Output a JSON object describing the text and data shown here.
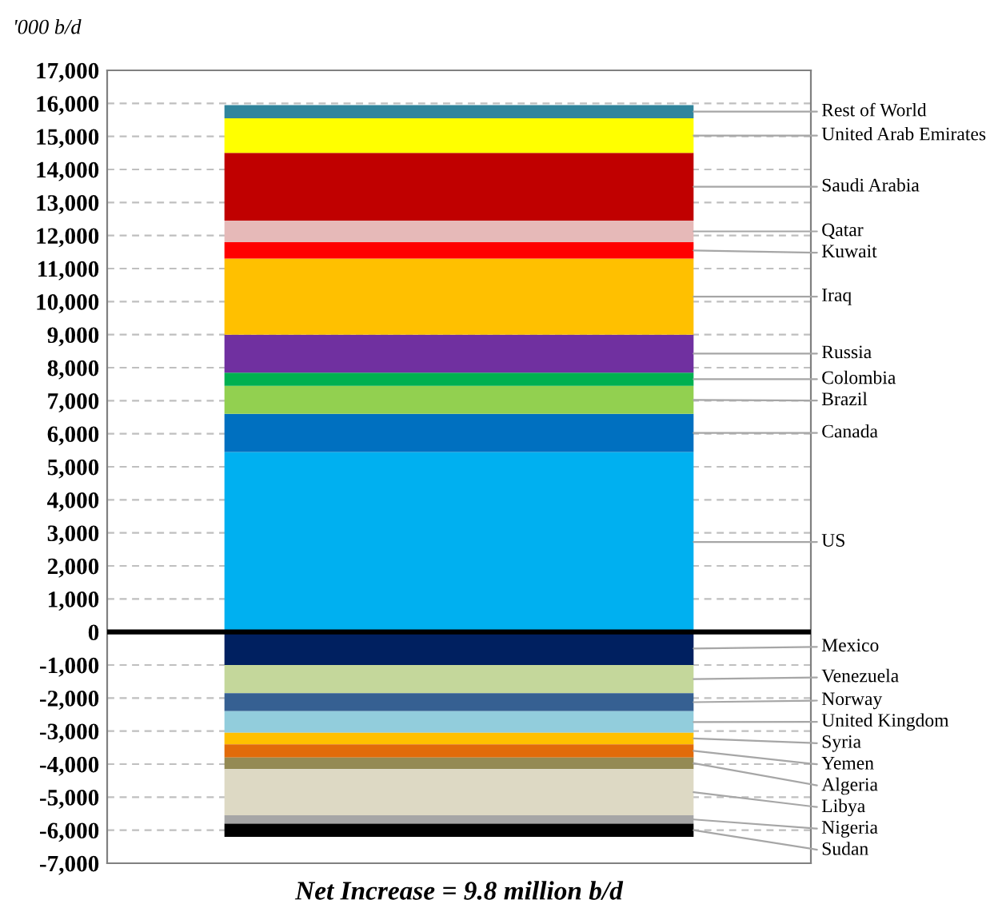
{
  "chart_data": {
    "type": "bar",
    "stacked": true,
    "categories": [
      null
    ],
    "ylabel": "'000 b/d",
    "xlabel": "Net Increase = 9.8 million b/d",
    "ylim": [
      -7000,
      17000
    ],
    "yticks": [
      {
        "value": -7000,
        "label": "-7,000"
      },
      {
        "value": -6000,
        "label": "-6,000"
      },
      {
        "value": -5000,
        "label": "-5,000"
      },
      {
        "value": -4000,
        "label": "-4,000"
      },
      {
        "value": -3000,
        "label": "-3,000"
      },
      {
        "value": -2000,
        "label": "-2,000"
      },
      {
        "value": -1000,
        "label": "-1,000"
      },
      0,
      {
        "value": 1000,
        "label": "1,000"
      },
      {
        "value": 2000,
        "label": "2,000"
      },
      {
        "value": 3000,
        "label": "3,000"
      },
      {
        "value": 4000,
        "label": "4,000"
      },
      {
        "value": 5000,
        "label": "5,000"
      },
      {
        "value": 6000,
        "label": "6,000"
      },
      {
        "value": 7000,
        "label": "7,000"
      },
      {
        "value": 8000,
        "label": "8,000"
      },
      {
        "value": 9000,
        "label": "9,000"
      },
      {
        "value": 10000,
        "label": "10,000"
      },
      {
        "value": 11000,
        "label": "11,000"
      },
      {
        "value": 12000,
        "label": "12,000"
      },
      {
        "value": 13000,
        "label": "13,000"
      },
      {
        "value": 14000,
        "label": "14,000"
      },
      {
        "value": 15000,
        "label": "15,000"
      },
      {
        "value": 16000,
        "label": "16,000"
      },
      {
        "value": 17000,
        "label": "17,000"
      }
    ],
    "grid": "y",
    "legend": false,
    "tick_labels": "y",
    "ref_lines": [
      {
        "axis": "y",
        "value": 0,
        "color": "#000000",
        "line_style": "solid"
      }
    ],
    "series": [
      {
        "name": "US",
        "color": "#00b0f0",
        "values": [
          5450
        ]
      },
      {
        "name": "Canada",
        "color": "#0070c0",
        "values": [
          1150
        ]
      },
      {
        "name": "Brazil",
        "color": "#92d050",
        "values": [
          850
        ]
      },
      {
        "name": "Colombia",
        "color": "#00b050",
        "values": [
          400
        ]
      },
      {
        "name": "Russia",
        "color": "#7030a0",
        "values": [
          1150
        ]
      },
      {
        "name": "Iraq",
        "color": "#ffc000",
        "values": [
          2300
        ]
      },
      {
        "name": "Kuwait",
        "color": "#ff0000",
        "values": [
          500
        ]
      },
      {
        "name": "Qatar",
        "color": "#e6b9b8",
        "values": [
          650
        ]
      },
      {
        "name": "Saudi Arabia",
        "color": "#c00000",
        "values": [
          2050
        ]
      },
      {
        "name": "United Arab Emirates",
        "color": "#ffff00",
        "values": [
          1050
        ]
      },
      {
        "name": "Rest of World",
        "color": "#31859c",
        "values": [
          400
        ]
      },
      {
        "name": "Mexico",
        "color": "#002060",
        "values": [
          -1000
        ]
      },
      {
        "name": "Venezuela",
        "color": "#c4d79b",
        "values": [
          -850
        ]
      },
      {
        "name": "Norway",
        "color": "#366092",
        "values": [
          -550
        ]
      },
      {
        "name": "United Kingdom",
        "color": "#92cddc",
        "values": [
          -650
        ]
      },
      {
        "name": "Syria",
        "color": "#ffc000",
        "values": [
          -350
        ]
      },
      {
        "name": "Yemen",
        "color": "#e26b0a",
        "values": [
          -400
        ]
      },
      {
        "name": "Algeria",
        "color": "#948a54",
        "values": [
          -350
        ]
      },
      {
        "name": "Libya",
        "color": "#ddd9c4",
        "values": [
          -1400
        ]
      },
      {
        "name": "Nigeria",
        "color": "#a6a6a6",
        "values": [
          -250
        ]
      },
      {
        "name": "Sudan",
        "color": "#000000",
        "values": [
          -400
        ]
      }
    ]
  }
}
